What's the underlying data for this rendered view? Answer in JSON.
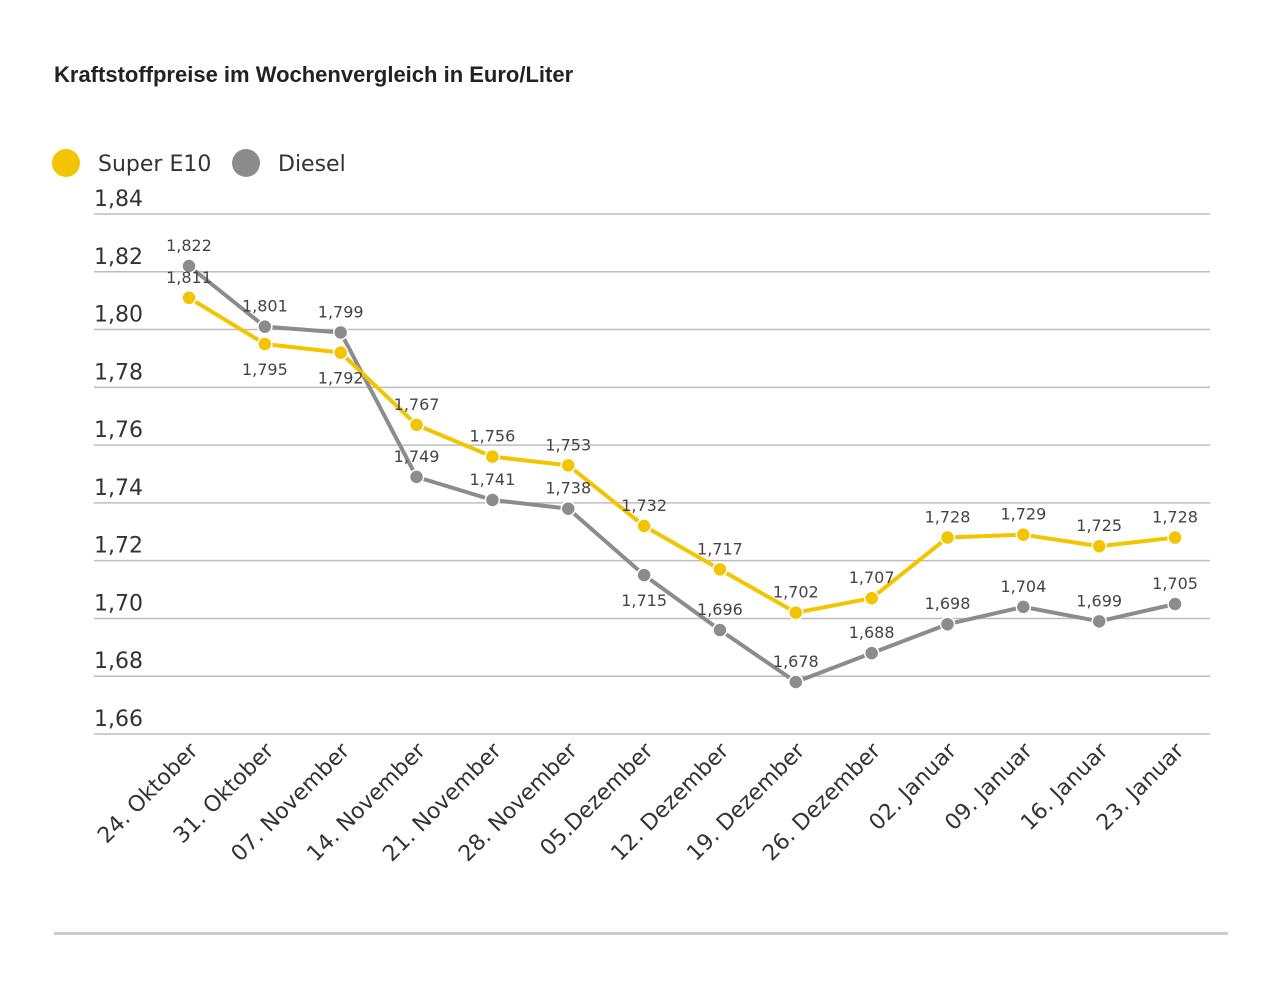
{
  "chart_data": {
    "type": "line",
    "title": "Kraftstoffpreise im Wochenvergleich in Euro/Liter",
    "categories": [
      "24. Oktober",
      "31. Oktober",
      "07. November",
      "14. November",
      "21. November",
      "28. November",
      "05.Dezember",
      "12. Dezember",
      "19. Dezember",
      "26. Dezember",
      "02. Januar",
      "09. Januar",
      "16. Januar",
      "23. Januar"
    ],
    "series": [
      {
        "name": "Super E10",
        "color": "#f2c500",
        "values": [
          1.811,
          1.795,
          1.792,
          1.767,
          1.756,
          1.753,
          1.732,
          1.717,
          1.702,
          1.707,
          1.728,
          1.729,
          1.725,
          1.728
        ],
        "labels": [
          "1,811",
          "1,795",
          "1,792",
          "1,767",
          "1,756",
          "1,753",
          "1,732",
          "1,717",
          "1,702",
          "1,707",
          "1,728",
          "1,729",
          "1,725",
          "1,728"
        ]
      },
      {
        "name": "Diesel",
        "color": "#8c8c8c",
        "values": [
          1.822,
          1.801,
          1.799,
          1.749,
          1.741,
          1.738,
          1.715,
          1.696,
          1.678,
          1.688,
          1.698,
          1.704,
          1.699,
          1.705
        ],
        "labels": [
          "1,822",
          "1,801",
          "1,799",
          "1,749",
          "1,741",
          "1,738",
          "1,715",
          "1,696",
          "1,678",
          "1,688",
          "1,698",
          "1,704",
          "1,699",
          "1,705"
        ]
      }
    ],
    "ylim": [
      1.66,
      1.84
    ],
    "yticks": [
      1.84,
      1.82,
      1.8,
      1.78,
      1.76,
      1.74,
      1.72,
      1.7,
      1.68,
      1.66
    ],
    "ytick_labels": [
      "1,84",
      "1,82",
      "1,80",
      "1,78",
      "1,76",
      "1,74",
      "1,72",
      "1,70",
      "1,68",
      "1,66"
    ],
    "grid": true,
    "legend": "top-left"
  }
}
